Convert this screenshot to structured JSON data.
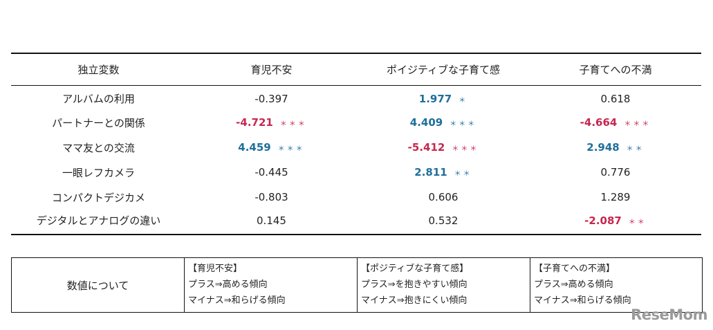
{
  "colors": {
    "positive": "#1f6f9b",
    "negative": "#c8264f",
    "normal": "#222222"
  },
  "headers": [
    "独立変数",
    "育児不安",
    "ポイジティブな子育て感",
    "子育てへの不満"
  ],
  "rows": [
    {
      "label": "アルバムの利用",
      "cells": [
        {
          "value": "-0.397",
          "sig": "",
          "style": "normal"
        },
        {
          "value": "1.977",
          "sig": "＊",
          "style": "pos"
        },
        {
          "value": "0.618",
          "sig": "",
          "style": "normal"
        }
      ]
    },
    {
      "label": "パートナーとの関係",
      "cells": [
        {
          "value": "-4.721",
          "sig": "＊＊＊",
          "style": "neg"
        },
        {
          "value": "4.409",
          "sig": "＊＊＊",
          "style": "pos"
        },
        {
          "value": "-4.664",
          "sig": "＊＊＊",
          "style": "neg"
        }
      ]
    },
    {
      "label": "ママ友との交流",
      "cells": [
        {
          "value": "4.459",
          "sig": "＊＊＊",
          "style": "pos"
        },
        {
          "value": "-5.412",
          "sig": "＊＊＊",
          "style": "neg"
        },
        {
          "value": "2.948",
          "sig": "＊＊",
          "style": "pos"
        }
      ]
    },
    {
      "label": "一眼レフカメラ",
      "cells": [
        {
          "value": "-0.445",
          "sig": "",
          "style": "normal"
        },
        {
          "value": "2.811",
          "sig": "＊＊",
          "style": "pos"
        },
        {
          "value": "0.776",
          "sig": "",
          "style": "normal"
        }
      ]
    },
    {
      "label": "コンパクトデジカメ",
      "cells": [
        {
          "value": "-0.803",
          "sig": "",
          "style": "normal"
        },
        {
          "value": "0.606",
          "sig": "",
          "style": "normal"
        },
        {
          "value": "1.289",
          "sig": "",
          "style": "normal"
        }
      ]
    },
    {
      "label": "デジタルとアナログの違い",
      "cells": [
        {
          "value": "0.145",
          "sig": "",
          "style": "normal"
        },
        {
          "value": "0.532",
          "sig": "",
          "style": "normal"
        },
        {
          "value": "-2.087",
          "sig": "＊＊",
          "style": "neg"
        }
      ]
    }
  ],
  "notes": {
    "label": "数値について",
    "columns": [
      {
        "title": "【育児不安】",
        "lines": [
          "プラス⇒高める傾向",
          "マイナス⇒和らげる傾向"
        ]
      },
      {
        "title": "【ポジティブな子育て感】",
        "lines": [
          "プラス⇒を抱きやすい傾向",
          "マイナス⇒抱きにくい傾向"
        ]
      },
      {
        "title": "【子育てへの不満】",
        "lines": [
          "プラス⇒高める傾向",
          "マイナス⇒和らげる傾向"
        ]
      }
    ]
  },
  "logo": {
    "text": "ReseMom",
    "icon": "resemom-logo"
  }
}
